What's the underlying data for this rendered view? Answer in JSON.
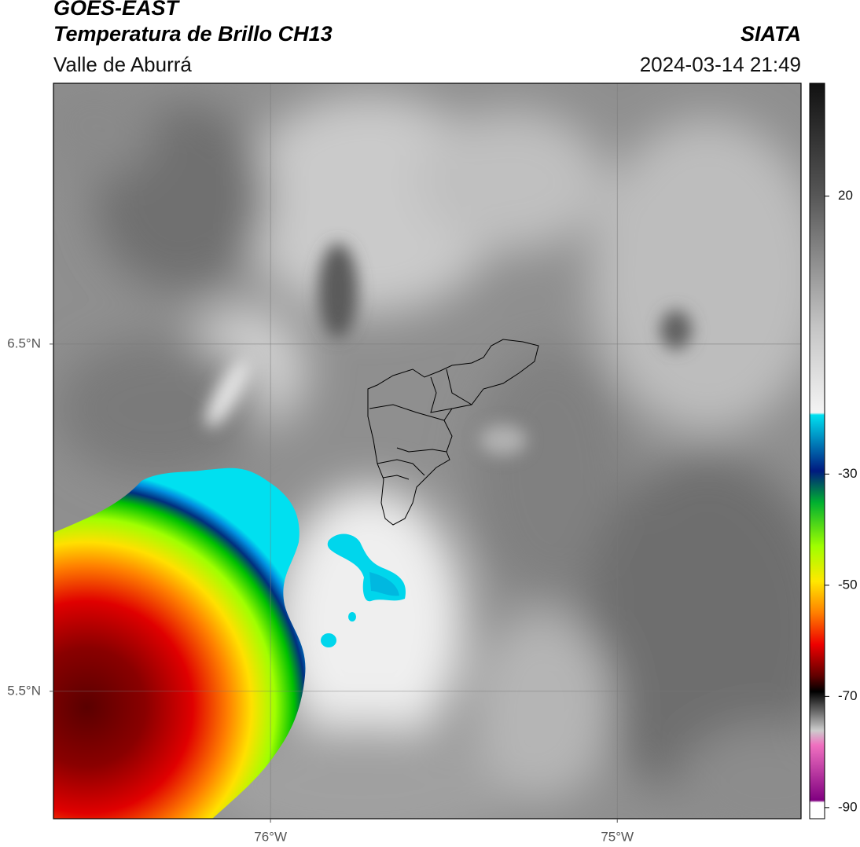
{
  "header": {
    "title": "GOES-EAST",
    "subtitle": "Temperatura de Brillo CH13",
    "region": "Valle de Aburrá",
    "source": "SIATA",
    "datetime": "2024-03-14 21:49"
  },
  "map": {
    "xlim": [
      -76.626,
      -74.47
    ],
    "ylim": [
      5.133,
      7.251
    ],
    "xticks": [
      {
        "value": -76,
        "label": "76°W"
      },
      {
        "value": -75,
        "label": "75°W"
      }
    ],
    "yticks": [
      {
        "value": 6.5,
        "label": "6.5°N"
      },
      {
        "value": 5.5,
        "label": "5.5°N"
      }
    ],
    "grid": true
  },
  "colorbar": {
    "lim": [
      -92,
      40.3
    ],
    "ticks": [
      20,
      -30,
      -50,
      -70,
      -90
    ]
  }
}
